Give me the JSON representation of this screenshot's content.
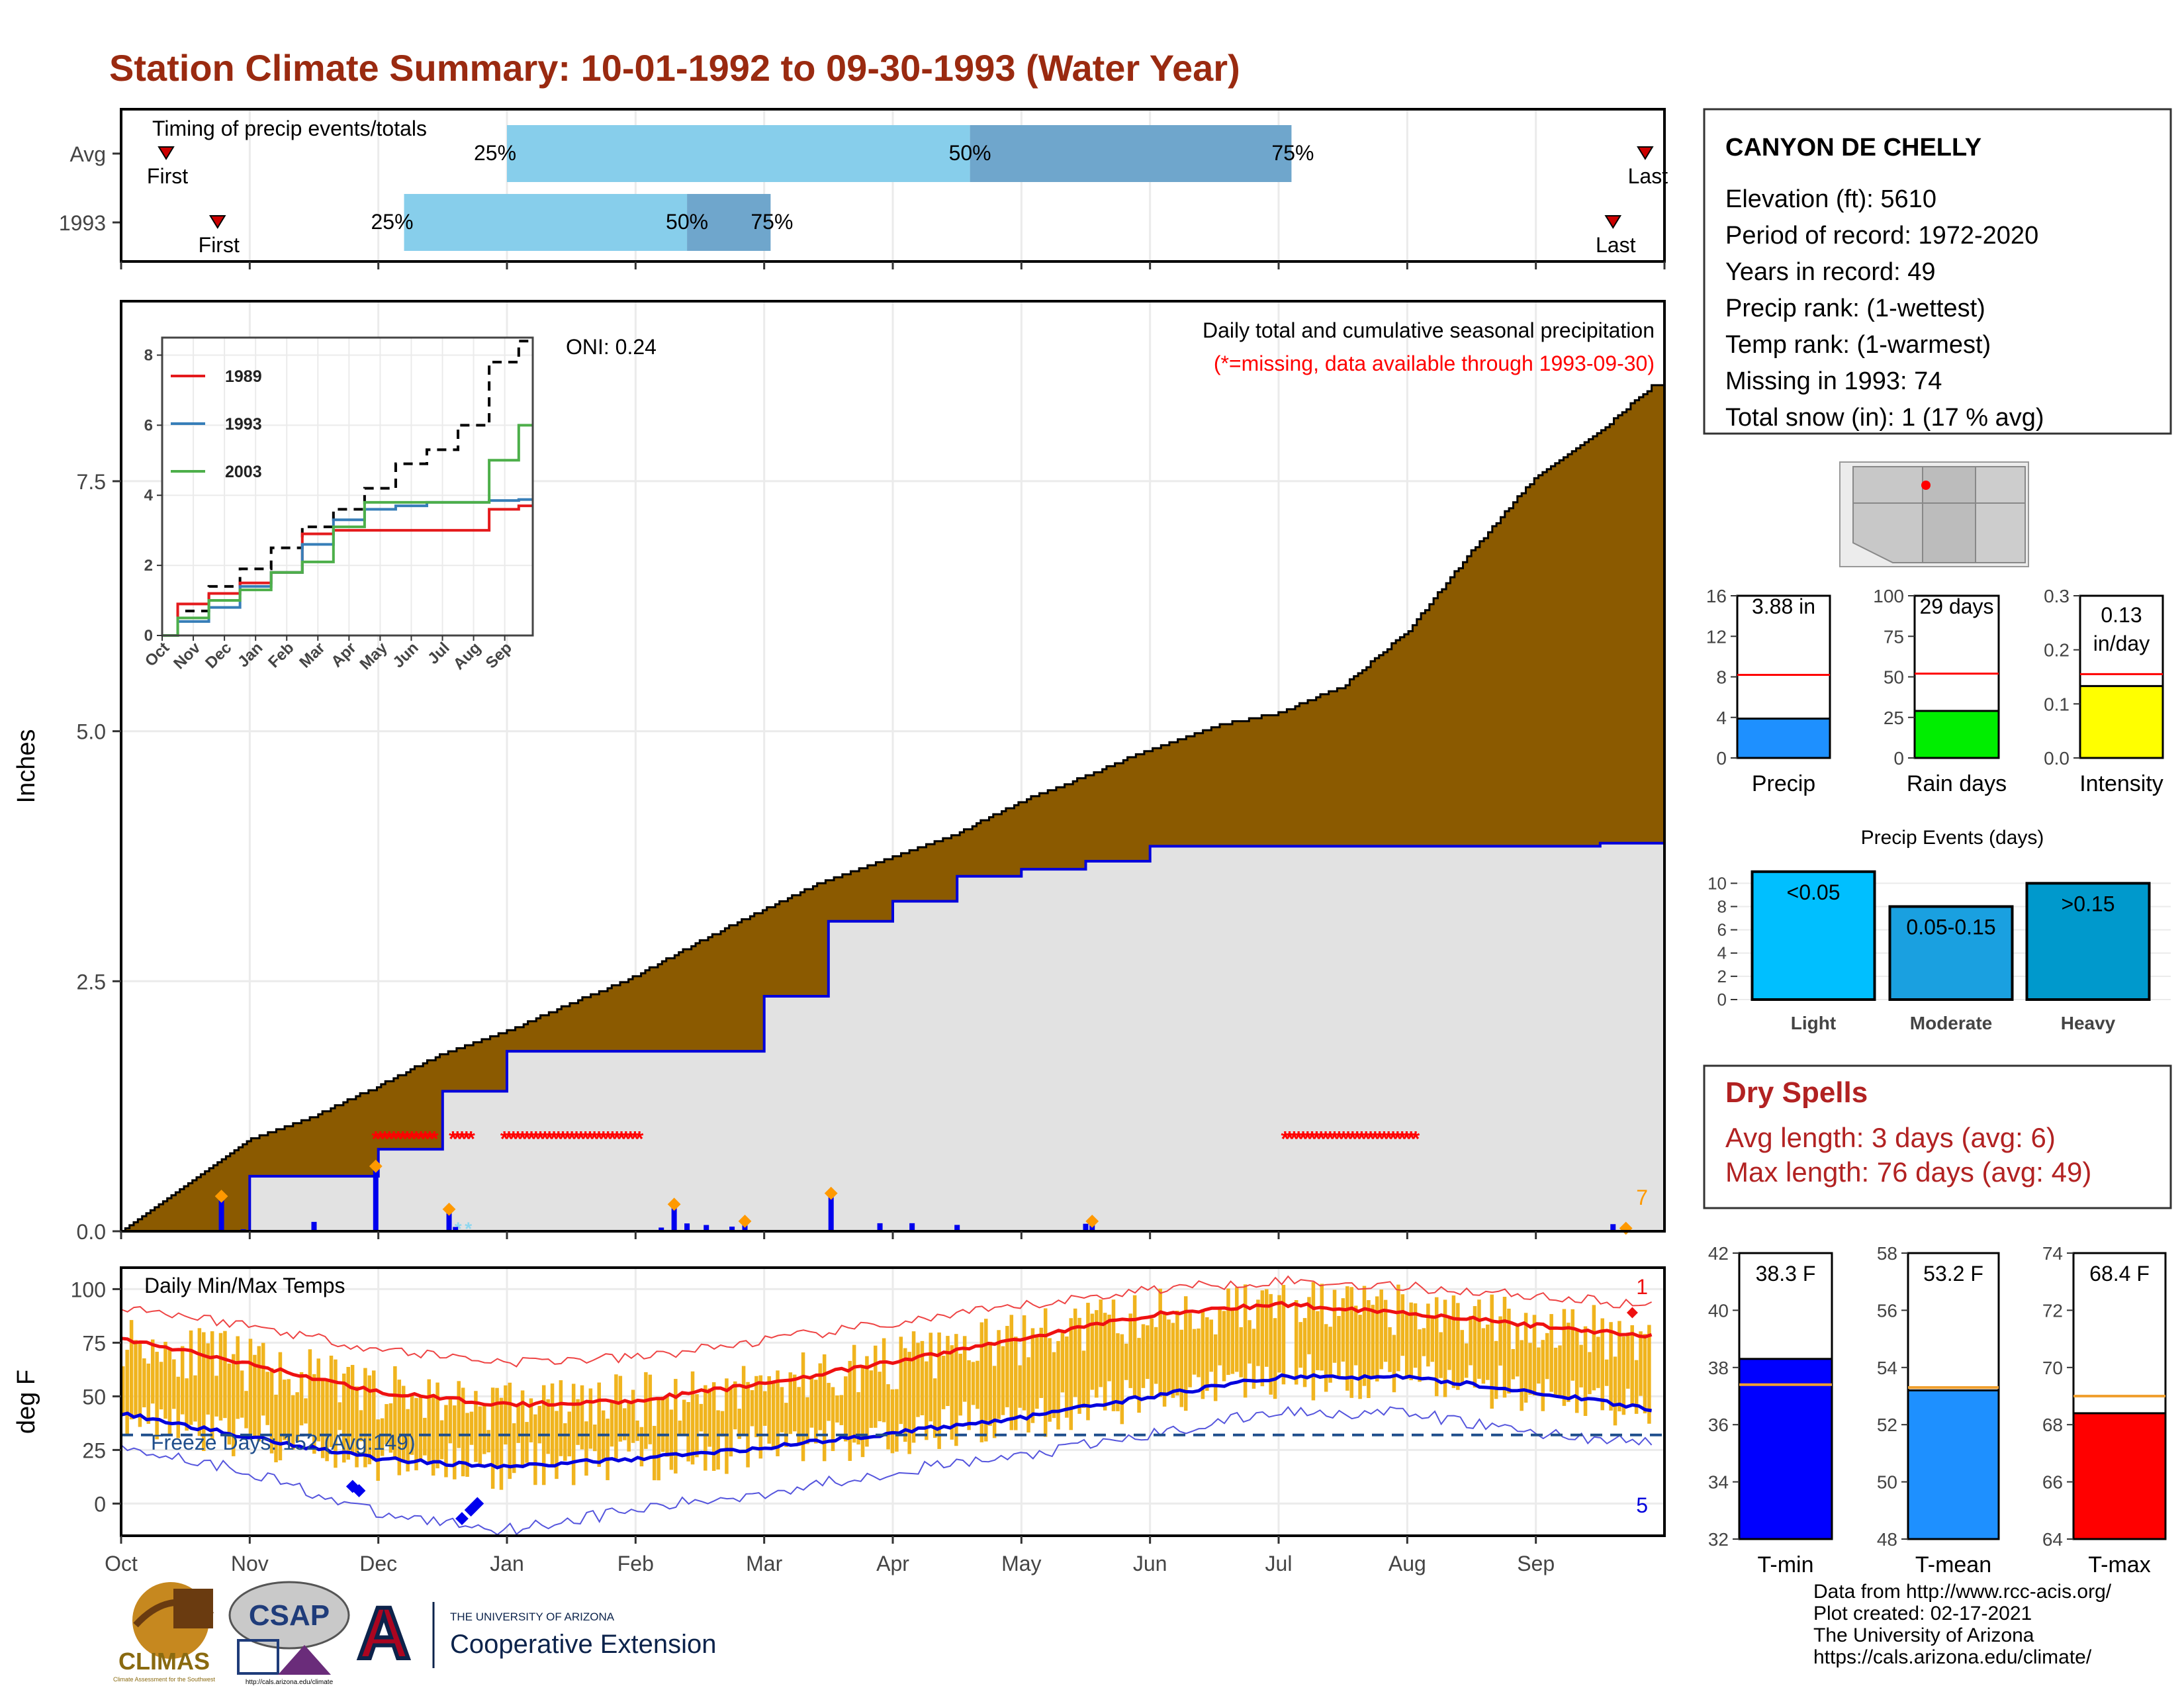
{
  "page": {
    "title": "Station Climate Summary: 10-01-1992 to 09-30-1993 (Water Year)"
  },
  "timing_panel": {
    "caption": "Timing of precip events/totals",
    "rows": [
      {
        "label": "Avg",
        "first": "First",
        "last": "Last",
        "first_month": 0.35,
        "q25_month": 3.0,
        "q50_month": 6.6,
        "q75_month": 9.1,
        "last_month": 11.85,
        "pct25": "25%",
        "pct50": "50%",
        "pct75": "75%"
      },
      {
        "label": "1993",
        "first": "First",
        "last": "Last",
        "first_month": 0.75,
        "q25_month": 2.2,
        "q50_month": 4.4,
        "q75_month": 5.05,
        "last_month": 11.6,
        "pct25": "25%",
        "pct50": "50%",
        "pct75": "75%"
      }
    ]
  },
  "station_info": {
    "name": "CANYON DE CHELLY",
    "lines": [
      "Elevation (ft): 5610",
      "Period of record: 1972-2020",
      "Years in record: 49",
      "Precip rank:  (1-wettest)",
      "Temp rank:  (1-warmest)",
      "Missing in 1993: 74",
      "Total snow (in): 1 (17 % avg)"
    ]
  },
  "precip_panel": {
    "ylabel": "Inches",
    "oni": "ONI: 0.24",
    "subtitle": "Daily total and cumulative seasonal precipitation",
    "missing_note": "(*=missing, data available through 1993-09-30)",
    "corner_number": "7",
    "y_ticks": [
      "0.0",
      "2.5",
      "5.0",
      "7.5"
    ],
    "colors": {
      "average_fill": "#8b5a00",
      "year_fill": "#e2e2e2",
      "year_line": "#0000dd",
      "missing": "#ff0000",
      "snow": "#8fd7ef",
      "daily_bar": "#0000ee",
      "marker": "#ff9900"
    },
    "missing_periods": [
      [
        1.98,
        2.45
      ],
      [
        2.58,
        2.74
      ],
      [
        2.98,
        4.04
      ],
      [
        9.05,
        10.08
      ]
    ],
    "snow_marks": [
      2.62,
      2.7
    ],
    "big_events": [
      [
        0.78,
        0.35
      ],
      [
        1.98,
        0.65
      ],
      [
        2.55,
        0.22
      ],
      [
        4.3,
        0.27
      ],
      [
        4.85,
        0.1
      ],
      [
        5.52,
        0.38
      ],
      [
        7.55,
        0.1
      ],
      [
        11.7,
        0.03
      ]
    ]
  },
  "inset_chart": {
    "legend": [
      "1989",
      "1993",
      "2003"
    ],
    "colors": [
      "#e41a1c",
      "#377eb8",
      "#4daf4a"
    ],
    "y_ticks": [
      "0",
      "2",
      "4",
      "6",
      "8"
    ],
    "x_ticks": [
      "Oct",
      "Nov",
      "Dec",
      "Jan",
      "Feb",
      "Mar",
      "Apr",
      "May",
      "Jun",
      "Jul",
      "Aug",
      "Sep"
    ]
  },
  "temp_panel": {
    "ylabel": "deg F",
    "caption": "Daily Min/Max Temps",
    "freeze_note": "Freeze Days: 152 (Avg:149)",
    "corner_top": "1",
    "corner_bottom": "5",
    "y_ticks": [
      "0",
      "25",
      "50",
      "75",
      "100"
    ],
    "freeze_line": 32,
    "colors": {
      "bars": "#f0b41e",
      "avg_max": "#ee1111",
      "avg_min": "#0000dd",
      "record_max": "#ee4444",
      "record_min": "#5555dd"
    }
  },
  "x_axis": {
    "months": [
      "Oct",
      "Nov",
      "Dec",
      "Jan",
      "Feb",
      "Mar",
      "Apr",
      "May",
      "Jun",
      "Jul",
      "Aug",
      "Sep"
    ]
  },
  "map": {
    "alt": "Arizona and surrounding states locator map"
  },
  "mini_bars_precip": [
    {
      "label": "Precip",
      "value_text": "3.88 in",
      "value": 3.88,
      "avg": 8.2,
      "max": 16,
      "ticks": [
        "0",
        "4",
        "8",
        "12",
        "16"
      ],
      "color": "#1e90ff"
    },
    {
      "label": "Rain days",
      "value_text": "29 days",
      "value": 29,
      "avg": 52,
      "max": 100,
      "ticks": [
        "0",
        "25",
        "50",
        "75",
        "100"
      ],
      "color": "#00ee00"
    },
    {
      "label": "Intensity",
      "value_text": "0.13",
      "value_text2": "in/day",
      "value": 0.133,
      "avg": 0.155,
      "max": 0.3,
      "ticks": [
        "0.0",
        "0.1",
        "0.2",
        "0.3"
      ],
      "color": "#ffff00"
    }
  ],
  "precip_events": {
    "title": "Precip Events (days)",
    "bars": [
      {
        "label": "Light",
        "range": "<0.05",
        "value": 11,
        "color": "#00bfff"
      },
      {
        "label": "Moderate",
        "range": "0.05-0.15",
        "value": 8,
        "color": "#1aa0e0"
      },
      {
        "label": "Heavy",
        "range": ">0.15",
        "value": 10,
        "color": "#0099cc"
      }
    ],
    "ticks": [
      "0",
      "2",
      "4",
      "6",
      "8",
      "10"
    ]
  },
  "dry_spells": {
    "title": "Dry Spells",
    "lines": [
      "Avg length: 3 days (avg: 6)",
      "Max length: 76 days (avg: 49)"
    ]
  },
  "mini_bars_temp": [
    {
      "label": "T-min",
      "value_text": "38.3 F",
      "value": 38.3,
      "avg": 37.4,
      "min": 32,
      "max": 42,
      "ticks": [
        "32",
        "34",
        "36",
        "38",
        "40",
        "42"
      ],
      "color": "#0000ff"
    },
    {
      "label": "T-mean",
      "value_text": "53.2 F",
      "value": 53.2,
      "avg": 53.3,
      "min": 48,
      "max": 58,
      "ticks": [
        "48",
        "50",
        "52",
        "54",
        "56",
        "58"
      ],
      "color": "#1e90ff"
    },
    {
      "label": "T-max",
      "value_text": "68.4 F",
      "value": 68.4,
      "avg": 69.0,
      "min": 64,
      "max": 74,
      "ticks": [
        "64",
        "66",
        "68",
        "70",
        "72",
        "74"
      ],
      "color": "#ff0000"
    }
  ],
  "logos": {
    "climas": "CLIMAS",
    "climas_sub": "Climate Assessment for the Southwest",
    "csap": "CSAP",
    "csap_url": "http://cals.arizona.edu/climate",
    "ua_mark": "A",
    "ua_line1": "THE UNIVERSITY OF ARIZONA",
    "ua_line2": "Cooperative Extension"
  },
  "footer": {
    "lines": [
      "Data from http://www.rcc-acis.org/",
      "Plot created: 02-17-2021",
      "The University of Arizona",
      "https://cals.arizona.edu/climate/"
    ]
  },
  "chart_data": [
    {
      "type": "area",
      "title": "Daily total and cumulative seasonal precipitation",
      "xlabel": "",
      "ylabel": "Inches",
      "ylim": [
        0,
        9.3
      ],
      "categories": [
        "Oct",
        "Nov",
        "Dec",
        "Jan",
        "Feb",
        "Mar",
        "Apr",
        "May",
        "Jun",
        "Jul",
        "Aug",
        "Sep"
      ],
      "x": [
        0,
        0.5,
        1,
        1.5,
        2,
        2.5,
        3,
        3.5,
        4,
        4.5,
        5,
        5.5,
        6,
        6.5,
        7,
        7.5,
        8,
        8.5,
        9,
        9.5,
        10,
        10.5,
        11,
        11.5,
        11.9
      ],
      "series": [
        {
          "name": "average",
          "values": [
            0,
            0.45,
            0.92,
            1.15,
            1.45,
            1.78,
            2.0,
            2.28,
            2.55,
            2.9,
            3.22,
            3.52,
            3.75,
            3.98,
            4.3,
            4.55,
            4.82,
            5.05,
            5.18,
            5.45,
            6.0,
            6.8,
            7.55,
            8.0,
            8.45
          ]
        },
        {
          "name": "1993",
          "values": [
            0,
            0,
            0.55,
            0.55,
            0.82,
            1.4,
            1.8,
            1.8,
            1.8,
            1.8,
            2.35,
            3.1,
            3.3,
            3.55,
            3.62,
            3.7,
            3.85,
            3.85,
            3.85,
            3.85,
            3.85,
            3.85,
            3.85,
            3.88,
            3.88
          ]
        }
      ]
    },
    {
      "type": "line",
      "title": "",
      "xlabel": "",
      "ylabel": "",
      "ylim": [
        0,
        8.5
      ],
      "x_ticks": [
        "Oct",
        "Nov",
        "Dec",
        "Jan",
        "Feb",
        "Mar",
        "Apr",
        "May",
        "Jun",
        "Jul",
        "Aug",
        "Sep"
      ],
      "x": [
        0,
        1,
        2,
        3,
        4,
        5,
        6,
        7,
        8,
        9,
        10,
        11,
        11.9
      ],
      "series": [
        {
          "name": "",
          "values": [
            0,
            0.7,
            1.4,
            1.9,
            2.5,
            3.1,
            3.6,
            4.2,
            4.9,
            5.3,
            6.0,
            7.8,
            8.4
          ]
        },
        {
          "name": "1989",
          "values": [
            0,
            0.9,
            1.2,
            1.5,
            1.8,
            2.9,
            3.0,
            3.0,
            3.0,
            3.0,
            3.0,
            3.6,
            3.7
          ]
        },
        {
          "name": "1993",
          "values": [
            0,
            0.4,
            0.8,
            1.4,
            1.8,
            2.6,
            3.3,
            3.6,
            3.7,
            3.8,
            3.8,
            3.85,
            3.88
          ]
        },
        {
          "name": "2003",
          "values": [
            0,
            0.5,
            1.0,
            1.3,
            1.8,
            2.1,
            3.1,
            3.8,
            3.8,
            3.8,
            3.8,
            5.0,
            6.0
          ]
        }
      ]
    },
    {
      "type": "line",
      "title": "Daily Min/Max Temps",
      "xlabel": "",
      "ylabel": "deg F",
      "ylim": [
        -15,
        110
      ],
      "categories": [
        "Oct",
        "Nov",
        "Dec",
        "Jan",
        "Feb",
        "Mar",
        "Apr",
        "May",
        "Jun",
        "Jul",
        "Aug",
        "Sep"
      ],
      "x": [
        0,
        1,
        2,
        3,
        4,
        5,
        6,
        7,
        8,
        9,
        10,
        11,
        11.9
      ],
      "series": [
        {
          "name": "avg max",
          "values": [
            77,
            65,
            52,
            46,
            48,
            56,
            66,
            77,
            88,
            93,
            89,
            83,
            78
          ]
        },
        {
          "name": "avg min",
          "values": [
            42,
            31,
            21,
            17,
            21,
            26,
            33,
            40,
            50,
            59,
            59,
            52,
            44
          ]
        },
        {
          "name": "record max",
          "values": [
            92,
            83,
            72,
            66,
            68,
            76,
            84,
            92,
            100,
            104,
            101,
            97,
            92
          ]
        },
        {
          "name": "record min",
          "values": [
            27,
            15,
            -5,
            -12,
            -3,
            5,
            15,
            22,
            32,
            43,
            42,
            33,
            28
          ]
        }
      ]
    }
  ]
}
